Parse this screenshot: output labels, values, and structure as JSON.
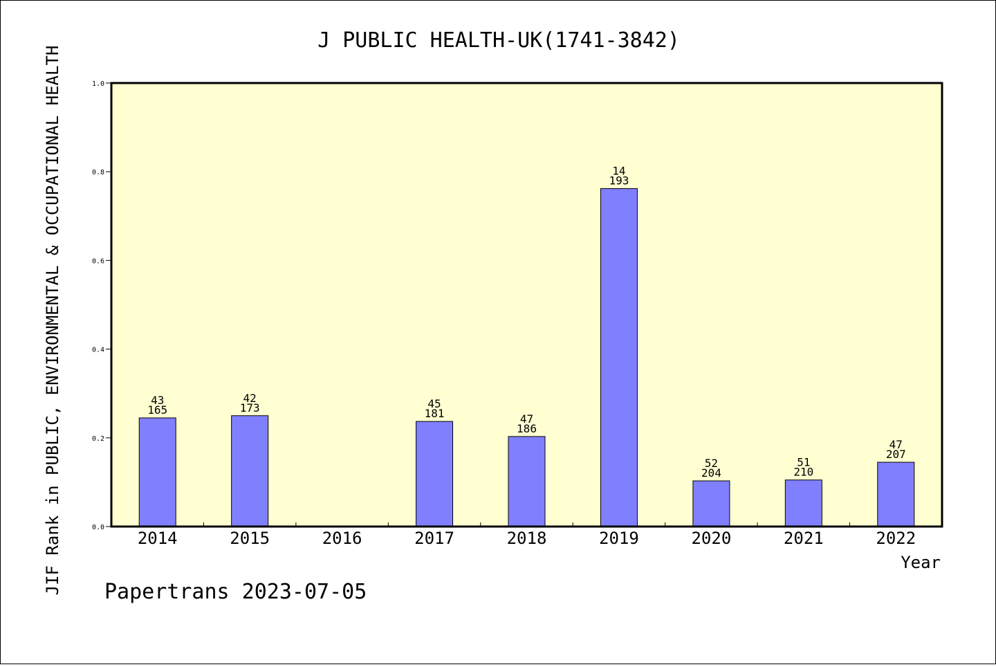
{
  "chart_data": {
    "type": "bar",
    "title": "J PUBLIC HEALTH-UK(1741-3842)",
    "xlabel": "Year",
    "ylabel": "JIF Rank in PUBLIC, ENVIRONMENTAL & OCCUPATIONAL HEALTH",
    "ylim": [
      0,
      1.0
    ],
    "yticks": [
      "0.0",
      "0.2",
      "0.4",
      "0.6",
      "0.8",
      "1.0"
    ],
    "categories": [
      "2014",
      "2015",
      "2016",
      "2017",
      "2018",
      "2019",
      "2020",
      "2021",
      "2022"
    ],
    "values": [
      0.245,
      0.25,
      null,
      0.237,
      0.203,
      0.762,
      0.103,
      0.105,
      0.145
    ],
    "rank": [
      "43",
      "42",
      "",
      "45",
      "47",
      "14",
      "52",
      "51",
      "47"
    ],
    "total": [
      "165",
      "173",
      "",
      "181",
      "186",
      "193",
      "204",
      "210",
      "207"
    ],
    "grid": false,
    "legend": "none"
  },
  "footer": {
    "text": "Papertrans 2023-07-05"
  },
  "colors": {
    "plot_background": "#ffffd2",
    "bar_fill": "#8080ff",
    "bar_stroke": "#000000",
    "axis": "#000000"
  }
}
